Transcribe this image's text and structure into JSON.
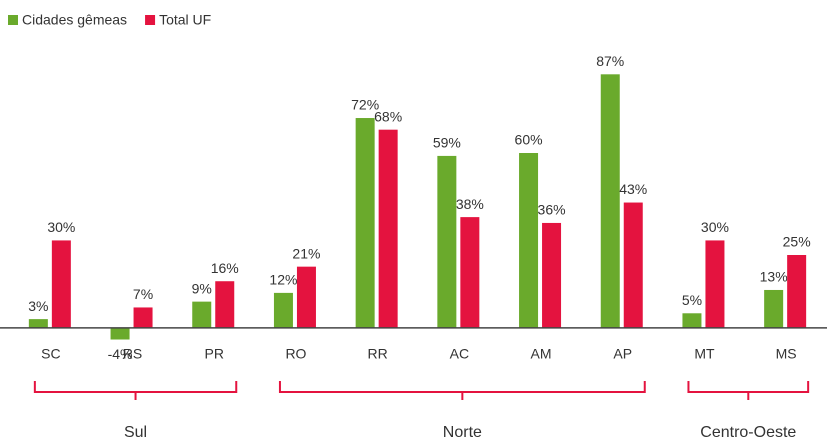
{
  "chart_data": {
    "type": "bar",
    "categories": [
      "SC",
      "RS",
      "PR",
      "RO",
      "RR",
      "AC",
      "AM",
      "AP",
      "MT",
      "MS"
    ],
    "series": [
      {
        "name": "Cidades gêmeas",
        "color": "#6aaa2c",
        "values": [
          3,
          -4,
          9,
          12,
          72,
          59,
          60,
          87,
          5,
          13
        ],
        "value_labels": [
          "3%",
          "-4%",
          "9%",
          "12%",
          "72%",
          "59%",
          "60%",
          "87%",
          "5%",
          "13%"
        ]
      },
      {
        "name": "Total UF",
        "color": "#e4133f",
        "values": [
          30,
          7,
          16,
          21,
          68,
          38,
          36,
          43,
          30,
          25
        ],
        "value_labels": [
          "30%",
          "7%",
          "16%",
          "21%",
          "68%",
          "38%",
          "36%",
          "43%",
          "30%",
          "25%"
        ]
      }
    ],
    "groups": [
      {
        "name": "Sul",
        "categories": [
          "SC",
          "RS",
          "PR"
        ]
      },
      {
        "name": "Norte",
        "categories": [
          "RO",
          "RR",
          "AC",
          "AM",
          "AP"
        ]
      },
      {
        "name": "Centro-Oeste",
        "categories": [
          "MT",
          "MS"
        ]
      }
    ],
    "ylim": [
      -10,
      95
    ],
    "legend": "top-left",
    "group_color": "#e4133f"
  }
}
